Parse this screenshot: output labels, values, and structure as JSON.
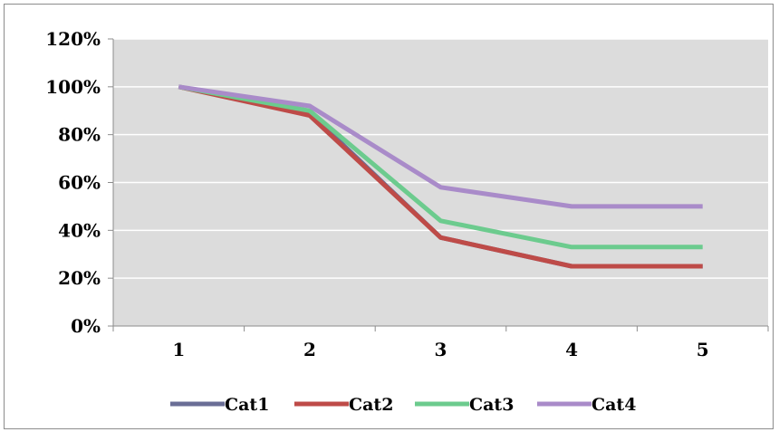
{
  "chart_data": {
    "type": "line",
    "categories": [
      "1",
      "2",
      "3",
      "4",
      "5"
    ],
    "ylim": [
      0,
      1.2
    ],
    "y_tick_values": [
      0,
      0.2,
      0.4,
      0.6,
      0.8,
      1.0,
      1.2
    ],
    "y_tick_labels": [
      "0%",
      "20%",
      "40%",
      "60%",
      "80%",
      "100%",
      "120%"
    ],
    "grid": true,
    "legend_position": "bottom",
    "plot_background": "#dcdcdc",
    "series": [
      {
        "name": "Cat1",
        "color": "#6a6e96",
        "values": [
          1.0,
          0.89,
          0.37,
          0.25,
          0.25
        ]
      },
      {
        "name": "Cat2",
        "color": "#be4b48",
        "values": [
          1.0,
          0.88,
          0.37,
          0.25,
          0.25
        ]
      },
      {
        "name": "Cat3",
        "color": "#6ccb8e",
        "values": [
          1.0,
          0.9,
          0.44,
          0.33,
          0.33
        ]
      },
      {
        "name": "Cat4",
        "color": "#a98bc9",
        "values": [
          1.0,
          0.92,
          0.58,
          0.5,
          0.5
        ]
      }
    ]
  }
}
